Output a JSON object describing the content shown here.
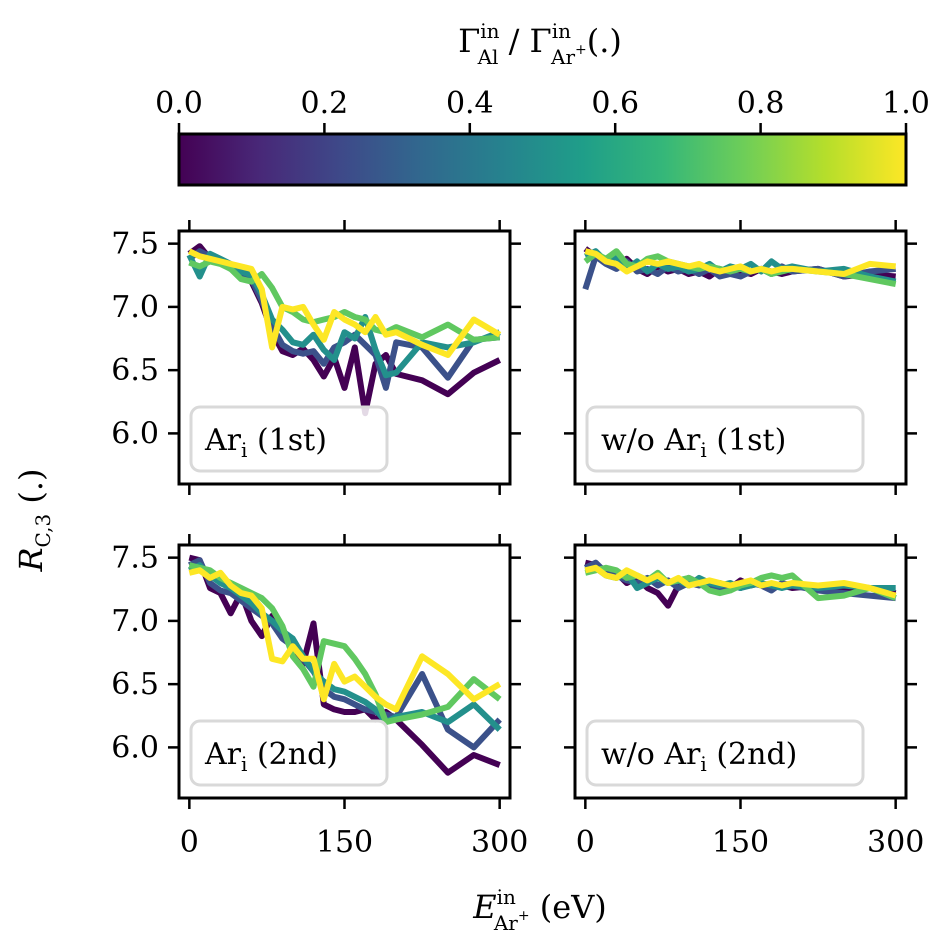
{
  "colorbar": {
    "label_parts": [
      "Γ",
      "in",
      "Al",
      " / ",
      "Γ",
      "in",
      "Ar",
      "+",
      "(.)"
    ],
    "ticks": [
      "0.0",
      "0.2",
      "0.4",
      "0.6",
      "0.8",
      "1.0"
    ],
    "tick_values": [
      0.0,
      0.2,
      0.4,
      0.6,
      0.8,
      1.0
    ],
    "range": [
      0,
      1
    ],
    "colormap": "viridis",
    "stops": [
      "#440154",
      "#482878",
      "#3e4989",
      "#31688e",
      "#26828e",
      "#1f9e89",
      "#35b779",
      "#6ece58",
      "#b5de2b",
      "#fde725"
    ]
  },
  "axes_labels": {
    "ylabel_parts": [
      "R",
      "C,3",
      " (.)"
    ],
    "xlabel_parts": [
      "E",
      "in",
      "Ar",
      "+",
      " (eV)"
    ]
  },
  "chart_data": [
    {
      "type": "line",
      "panel": "top-left",
      "legend": {
        "main": "Ar",
        "sub": "i",
        "suffix": " (1st)"
      },
      "x": [
        0,
        10,
        20,
        30,
        40,
        50,
        60,
        70,
        80,
        90,
        100,
        110,
        120,
        130,
        140,
        150,
        160,
        170,
        180,
        190,
        200,
        225,
        250,
        275,
        300
      ],
      "xlim": [
        -10,
        310
      ],
      "ylim": [
        5.6,
        7.6
      ],
      "xticks": [
        0,
        150,
        300
      ],
      "xticklabels": [
        "",
        "",
        ""
      ],
      "yticks": [
        6.0,
        6.5,
        7.0,
        7.5
      ],
      "yticklabels": [
        "6.0",
        "6.5",
        "7.0",
        "7.5"
      ],
      "series": [
        {
          "color_value": 0.0,
          "values": [
            7.42,
            7.48,
            7.38,
            7.36,
            7.33,
            7.24,
            7.2,
            7.03,
            6.8,
            6.65,
            6.62,
            6.67,
            6.58,
            6.45,
            6.6,
            6.36,
            6.68,
            6.16,
            6.55,
            6.62,
            6.47,
            6.42,
            6.31,
            6.48,
            6.58
          ]
        },
        {
          "color_value": 0.25,
          "values": [
            7.38,
            7.44,
            7.4,
            7.35,
            7.3,
            7.27,
            7.22,
            7.05,
            6.85,
            6.7,
            6.65,
            6.63,
            6.65,
            6.55,
            6.68,
            6.72,
            6.78,
            6.7,
            6.62,
            6.36,
            6.72,
            6.68,
            6.44,
            6.74,
            6.76
          ]
        },
        {
          "color_value": 0.5,
          "values": [
            7.41,
            7.24,
            7.42,
            7.38,
            7.34,
            7.28,
            7.25,
            7.1,
            6.9,
            6.82,
            6.72,
            6.7,
            6.78,
            6.66,
            6.58,
            6.8,
            6.75,
            6.92,
            6.66,
            6.46,
            6.48,
            6.72,
            6.68,
            6.72,
            6.8
          ]
        },
        {
          "color_value": 0.75,
          "values": [
            7.35,
            7.32,
            7.36,
            7.34,
            7.3,
            7.22,
            7.2,
            7.26,
            7.15,
            7.0,
            6.96,
            6.9,
            6.88,
            6.9,
            6.92,
            6.96,
            6.92,
            6.9,
            6.82,
            6.8,
            6.84,
            6.76,
            6.86,
            6.74,
            6.76
          ]
        },
        {
          "color_value": 1.0,
          "values": [
            7.44,
            7.4,
            7.38,
            7.36,
            7.34,
            7.32,
            7.3,
            7.14,
            6.68,
            7.0,
            6.98,
            7.0,
            6.86,
            6.74,
            6.96,
            6.9,
            6.86,
            6.8,
            6.92,
            6.78,
            6.8,
            6.7,
            6.62,
            6.9,
            6.78
          ]
        }
      ]
    },
    {
      "type": "line",
      "panel": "top-right",
      "legend": {
        "main": "w/o Ar",
        "sub": "i",
        "suffix": " (1st)"
      },
      "x": [
        0,
        10,
        20,
        30,
        40,
        50,
        60,
        70,
        80,
        90,
        100,
        110,
        120,
        130,
        140,
        150,
        160,
        170,
        180,
        190,
        200,
        225,
        250,
        275,
        300
      ],
      "xlim": [
        -10,
        310
      ],
      "ylim": [
        5.6,
        7.6
      ],
      "xticks": [
        0,
        150,
        300
      ],
      "xticklabels": [
        "",
        "",
        ""
      ],
      "yticks": [
        6.0,
        6.5,
        7.0,
        7.5
      ],
      "yticklabels": [
        "",
        "",
        "",
        ""
      ],
      "series": [
        {
          "color_value": 0.0,
          "values": [
            7.46,
            7.4,
            7.36,
            7.32,
            7.38,
            7.3,
            7.26,
            7.32,
            7.28,
            7.3,
            7.26,
            7.28,
            7.24,
            7.3,
            7.26,
            7.28,
            7.26,
            7.3,
            7.28,
            7.26,
            7.28,
            7.3,
            7.24,
            7.26,
            7.24
          ]
        },
        {
          "color_value": 0.25,
          "values": [
            7.14,
            7.4,
            7.34,
            7.3,
            7.36,
            7.28,
            7.3,
            7.26,
            7.32,
            7.28,
            7.3,
            7.26,
            7.3,
            7.24,
            7.26,
            7.24,
            7.28,
            7.3,
            7.26,
            7.32,
            7.28,
            7.3,
            7.24,
            7.28,
            7.3
          ]
        },
        {
          "color_value": 0.5,
          "values": [
            7.4,
            7.44,
            7.36,
            7.4,
            7.3,
            7.36,
            7.28,
            7.34,
            7.3,
            7.32,
            7.28,
            7.3,
            7.34,
            7.28,
            7.32,
            7.3,
            7.34,
            7.28,
            7.36,
            7.3,
            7.32,
            7.28,
            7.3,
            7.24,
            7.2
          ]
        },
        {
          "color_value": 0.75,
          "values": [
            7.36,
            7.42,
            7.38,
            7.44,
            7.34,
            7.32,
            7.38,
            7.4,
            7.36,
            7.34,
            7.32,
            7.3,
            7.32,
            7.3,
            7.28,
            7.3,
            7.28,
            7.3,
            7.26,
            7.28,
            7.3,
            7.28,
            7.26,
            7.22,
            7.18
          ]
        },
        {
          "color_value": 1.0,
          "values": [
            7.44,
            7.42,
            7.36,
            7.34,
            7.28,
            7.32,
            7.36,
            7.34,
            7.36,
            7.34,
            7.32,
            7.34,
            7.3,
            7.28,
            7.3,
            7.32,
            7.28,
            7.3,
            7.28,
            7.3,
            7.3,
            7.28,
            7.26,
            7.34,
            7.32
          ]
        }
      ]
    },
    {
      "type": "line",
      "panel": "bottom-left",
      "legend": {
        "main": "Ar",
        "sub": "i",
        "suffix": " (2nd)"
      },
      "x": [
        0,
        10,
        20,
        30,
        40,
        50,
        60,
        70,
        80,
        90,
        100,
        110,
        120,
        130,
        140,
        150,
        160,
        170,
        180,
        190,
        200,
        225,
        250,
        275,
        300
      ],
      "xlim": [
        -10,
        310
      ],
      "ylim": [
        5.6,
        7.6
      ],
      "xticks": [
        0,
        150,
        300
      ],
      "xticklabels": [
        "0",
        "150",
        "300"
      ],
      "yticks": [
        6.0,
        6.5,
        7.0,
        7.5
      ],
      "yticklabels": [
        "6.0",
        "6.5",
        "7.0",
        "7.5"
      ],
      "series": [
        {
          "color_value": 0.0,
          "values": [
            7.5,
            7.48,
            7.26,
            7.22,
            7.06,
            7.22,
            7.0,
            6.88,
            7.04,
            6.9,
            6.78,
            6.66,
            6.98,
            6.34,
            6.3,
            6.28,
            6.28,
            6.3,
            6.22,
            6.28,
            6.22,
            6.02,
            5.8,
            5.94,
            5.86
          ]
        },
        {
          "color_value": 0.25,
          "values": [
            7.44,
            7.48,
            7.3,
            7.24,
            7.22,
            7.16,
            7.1,
            7.04,
            6.98,
            6.86,
            6.8,
            6.7,
            6.6,
            6.46,
            6.4,
            6.38,
            6.34,
            6.3,
            6.28,
            6.26,
            6.24,
            6.58,
            6.14,
            6.0,
            6.22
          ]
        },
        {
          "color_value": 0.5,
          "values": [
            7.4,
            7.44,
            7.36,
            7.3,
            7.26,
            7.2,
            7.14,
            7.06,
            7.0,
            6.92,
            6.86,
            6.72,
            6.6,
            6.52,
            6.46,
            6.44,
            6.4,
            6.36,
            6.3,
            6.2,
            6.24,
            6.28,
            6.2,
            6.34,
            6.14
          ]
        },
        {
          "color_value": 0.75,
          "values": [
            7.44,
            7.42,
            7.4,
            7.34,
            7.3,
            7.26,
            7.22,
            7.18,
            7.1,
            6.96,
            6.72,
            6.62,
            6.48,
            6.84,
            6.82,
            6.8,
            6.7,
            6.58,
            6.42,
            6.2,
            6.22,
            6.26,
            6.32,
            6.54,
            6.38
          ]
        },
        {
          "color_value": 1.0,
          "values": [
            7.38,
            7.4,
            7.34,
            7.38,
            7.28,
            7.22,
            7.2,
            7.1,
            6.7,
            6.68,
            6.8,
            6.7,
            6.7,
            6.38,
            6.66,
            6.52,
            6.56,
            6.48,
            6.4,
            6.34,
            6.3,
            6.72,
            6.58,
            6.38,
            6.5
          ]
        }
      ]
    },
    {
      "type": "line",
      "panel": "bottom-right",
      "legend": {
        "main": "w/o Ar",
        "sub": "i",
        "suffix": " (2nd)"
      },
      "x": [
        0,
        10,
        20,
        30,
        40,
        50,
        60,
        70,
        80,
        90,
        100,
        110,
        120,
        130,
        140,
        150,
        160,
        170,
        180,
        190,
        200,
        225,
        250,
        275,
        300
      ],
      "xlim": [
        -10,
        310
      ],
      "ylim": [
        5.6,
        7.6
      ],
      "xticks": [
        0,
        150,
        300
      ],
      "xticklabels": [
        "0",
        "150",
        "300"
      ],
      "yticks": [
        6.0,
        6.5,
        7.0,
        7.5
      ],
      "yticklabels": [
        "",
        "",
        "",
        ""
      ],
      "series": [
        {
          "color_value": 0.0,
          "values": [
            7.46,
            7.44,
            7.4,
            7.38,
            7.3,
            7.34,
            7.26,
            7.22,
            7.12,
            7.28,
            7.34,
            7.3,
            7.28,
            7.3,
            7.26,
            7.32,
            7.28,
            7.3,
            7.26,
            7.28,
            7.26,
            7.28,
            7.24,
            7.26,
            7.22
          ]
        },
        {
          "color_value": 0.25,
          "values": [
            7.42,
            7.46,
            7.38,
            7.36,
            7.32,
            7.3,
            7.34,
            7.28,
            7.32,
            7.26,
            7.3,
            7.28,
            7.3,
            7.24,
            7.28,
            7.26,
            7.3,
            7.28,
            7.24,
            7.3,
            7.28,
            7.24,
            7.22,
            7.2,
            7.18
          ]
        },
        {
          "color_value": 0.5,
          "values": [
            7.4,
            7.42,
            7.36,
            7.34,
            7.38,
            7.26,
            7.3,
            7.34,
            7.3,
            7.32,
            7.28,
            7.34,
            7.3,
            7.28,
            7.3,
            7.26,
            7.28,
            7.3,
            7.28,
            7.26,
            7.28,
            7.26,
            7.28,
            7.26,
            7.26
          ]
        },
        {
          "color_value": 0.75,
          "values": [
            7.38,
            7.4,
            7.42,
            7.4,
            7.34,
            7.36,
            7.32,
            7.38,
            7.3,
            7.32,
            7.34,
            7.3,
            7.24,
            7.22,
            7.24,
            7.28,
            7.3,
            7.34,
            7.36,
            7.34,
            7.36,
            7.18,
            7.2,
            7.26,
            7.18
          ]
        },
        {
          "color_value": 1.0,
          "values": [
            7.4,
            7.42,
            7.36,
            7.34,
            7.4,
            7.36,
            7.32,
            7.36,
            7.3,
            7.34,
            7.28,
            7.3,
            7.32,
            7.3,
            7.28,
            7.3,
            7.32,
            7.28,
            7.3,
            7.28,
            7.3,
            7.28,
            7.3,
            7.26,
            7.2
          ]
        }
      ]
    }
  ]
}
